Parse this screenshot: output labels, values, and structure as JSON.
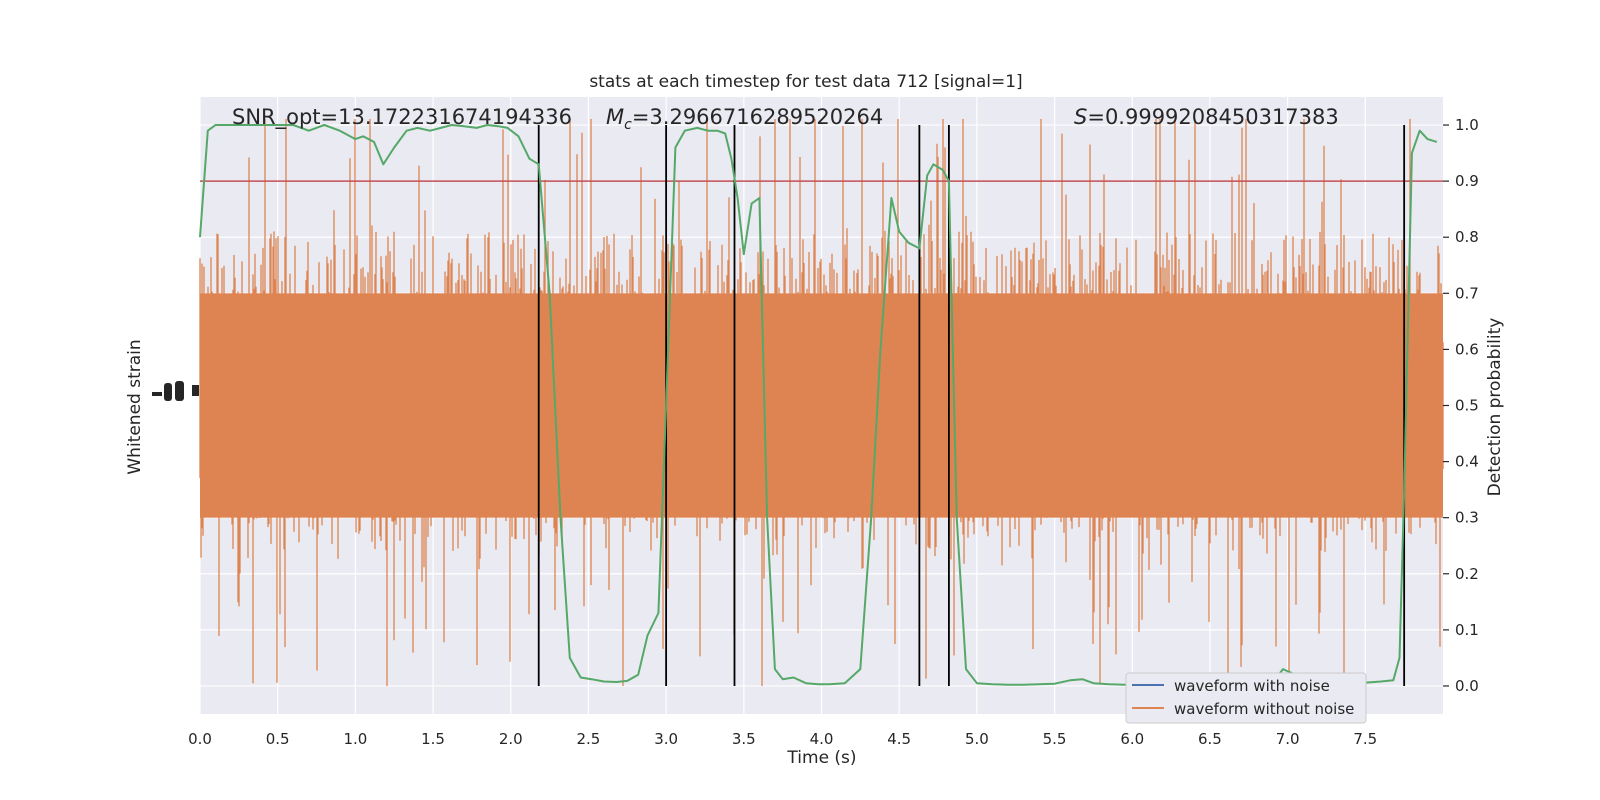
{
  "chart_data": {
    "type": "line",
    "title": "stats at each timestep for test data 712 [signal=1]",
    "xlabel": "Time (s)",
    "ylabel_left": "Whitened strain",
    "ylabel_right": "Detection probability",
    "xlim": [
      0,
      8.0
    ],
    "ylim_right": [
      -0.05,
      1.05
    ],
    "x_ticks": [
      "0.0",
      "0.5",
      "1.0",
      "1.5",
      "2.0",
      "2.5",
      "3.0",
      "3.5",
      "4.0",
      "4.5",
      "5.0",
      "5.5",
      "6.0",
      "6.5",
      "7.0",
      "7.5"
    ],
    "y_ticks_right": [
      "0.0",
      "0.1",
      "0.2",
      "0.3",
      "0.4",
      "0.5",
      "0.6",
      "0.7",
      "0.8",
      "0.9",
      "1.0"
    ],
    "grid": true,
    "legend_location": "lower right",
    "annotations": {
      "snr": "SNR_opt=13.172231674194336",
      "mc": "=3.2966716289520264",
      "mc_symbol": "M",
      "mc_subscript": "c",
      "s": "=0.9999208450317383",
      "s_symbol": "S"
    },
    "threshold": 0.9,
    "vertical_lines_x": [
      2.18,
      3.0,
      3.44,
      4.63,
      4.82,
      7.75
    ],
    "series": [
      {
        "name": "waveform with noise",
        "color": "#4c72b0",
        "values": []
      },
      {
        "name": "waveform without noise",
        "color": "#dd8452",
        "values": []
      }
    ],
    "detection_probability": {
      "color": "#55a868",
      "x": [
        0.0,
        0.05,
        0.1,
        0.2,
        0.3,
        0.4,
        0.5,
        0.6,
        0.7,
        0.8,
        0.9,
        1.0,
        1.05,
        1.12,
        1.18,
        1.25,
        1.33,
        1.4,
        1.48,
        1.55,
        1.62,
        1.7,
        1.78,
        1.85,
        1.92,
        1.98,
        2.05,
        2.12,
        2.18,
        2.25,
        2.32,
        2.38,
        2.45,
        2.52,
        2.6,
        2.68,
        2.75,
        2.82,
        2.88,
        2.95,
        3.0,
        3.06,
        3.12,
        3.2,
        3.27,
        3.33,
        3.38,
        3.42,
        3.46,
        3.5,
        3.55,
        3.6,
        3.65,
        3.7,
        3.75,
        3.82,
        3.9,
        3.98,
        4.05,
        4.15,
        4.25,
        4.32,
        4.38,
        4.45,
        4.5,
        4.56,
        4.63,
        4.68,
        4.72,
        4.78,
        4.82,
        4.87,
        4.93,
        5.0,
        5.1,
        5.2,
        5.3,
        5.4,
        5.5,
        5.6,
        5.68,
        5.75,
        5.85,
        5.95,
        6.1,
        6.3,
        6.5,
        6.7,
        6.9,
        6.97,
        7.05,
        7.15,
        7.3,
        7.45,
        7.6,
        7.68,
        7.72,
        7.75,
        7.8,
        7.85,
        7.9,
        7.96
      ],
      "y": [
        0.8,
        0.99,
        1.0,
        1.0,
        1.0,
        1.0,
        1.0,
        1.0,
        0.99,
        1.0,
        0.99,
        0.975,
        0.98,
        0.97,
        0.93,
        0.96,
        0.99,
        0.995,
        0.99,
        0.995,
        1.0,
        0.998,
        0.995,
        1.0,
        0.998,
        0.995,
        0.98,
        0.94,
        0.93,
        0.7,
        0.3,
        0.05,
        0.015,
        0.012,
        0.008,
        0.007,
        0.009,
        0.02,
        0.09,
        0.13,
        0.5,
        0.96,
        0.99,
        0.995,
        0.99,
        0.99,
        0.985,
        0.94,
        0.87,
        0.77,
        0.86,
        0.87,
        0.3,
        0.03,
        0.012,
        0.015,
        0.005,
        0.003,
        0.003,
        0.005,
        0.03,
        0.3,
        0.6,
        0.87,
        0.81,
        0.79,
        0.78,
        0.91,
        0.93,
        0.92,
        0.9,
        0.3,
        0.03,
        0.005,
        0.003,
        0.002,
        0.002,
        0.003,
        0.004,
        0.01,
        0.012,
        0.005,
        0.003,
        0.002,
        0.002,
        0.003,
        0.002,
        0.003,
        0.005,
        0.03,
        0.02,
        0.005,
        0.003,
        0.005,
        0.008,
        0.01,
        0.05,
        0.35,
        0.95,
        0.99,
        0.975,
        0.97
      ]
    }
  }
}
